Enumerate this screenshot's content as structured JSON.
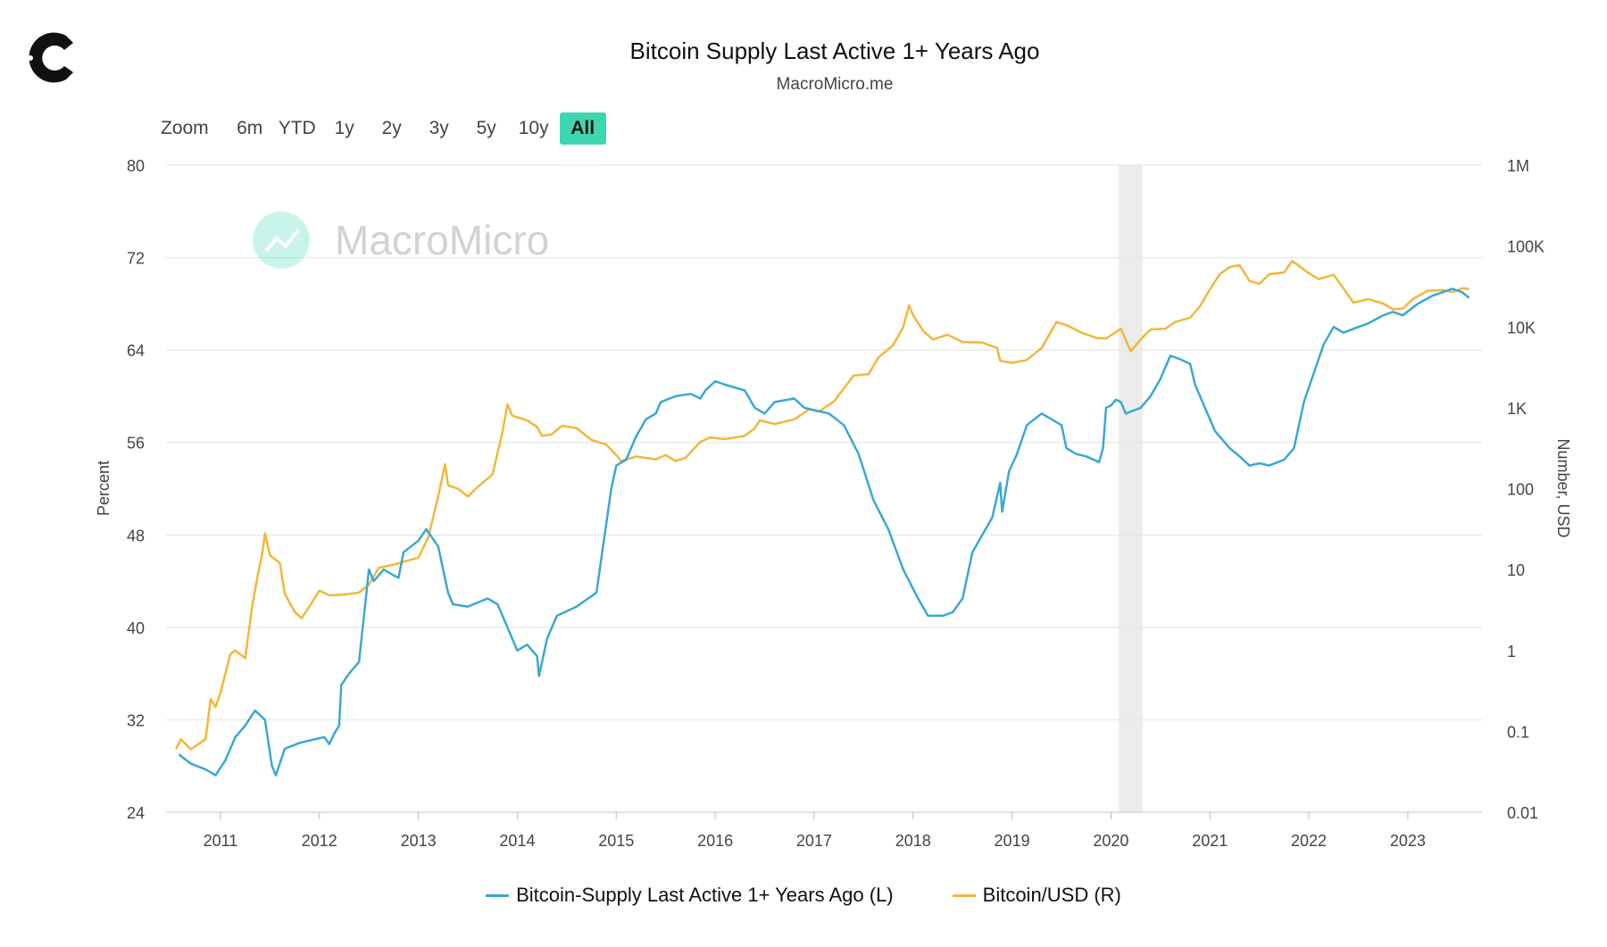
{
  "logo_icon": "c-brand-logo-icon",
  "title": "Bitcoin Supply Last Active 1+ Years Ago",
  "subtitle": "MacroMicro.me",
  "watermark": "MacroMicro",
  "range_selector": {
    "zoom_label": "Zoom",
    "buttons": [
      "6m",
      "YTD",
      "1y",
      "2y",
      "3y",
      "5y",
      "10y",
      "All"
    ],
    "active": "All"
  },
  "colors": {
    "supply": "#3aa8d2",
    "price": "#f2b73b",
    "grid": "#e6e6e6",
    "shade": "#ececec",
    "accent": "#3ed6b0"
  },
  "chart_data": {
    "type": "line",
    "title": "Bitcoin Supply Last Active 1+ Years Ago",
    "x_range": [
      2010.45,
      2023.75
    ],
    "x_ticks": [
      "2011",
      "2012",
      "2013",
      "2014",
      "2015",
      "2016",
      "2017",
      "2018",
      "2019",
      "2020",
      "2021",
      "2022",
      "2023"
    ],
    "left_axis": {
      "label": "Percent",
      "range": [
        24,
        80
      ],
      "ticks": [
        "24",
        "32",
        "40",
        "48",
        "56",
        "64",
        "72",
        "80"
      ]
    },
    "right_axis": {
      "label": "Number, USD",
      "scale": "log",
      "range": [
        0.01,
        1000000
      ],
      "ticks": [
        "0.01",
        "0.1",
        "1",
        "10",
        "100",
        "1K",
        "10K",
        "100K",
        "1M"
      ]
    },
    "shaded_region": [
      2020.08,
      2020.32
    ],
    "legend": [
      "Bitcoin-Supply Last Active 1+ Years Ago (L)",
      "Bitcoin/USD (R)"
    ],
    "series": [
      {
        "name": "Bitcoin-Supply Last Active 1+ Years Ago (L)",
        "axis": "left",
        "points": [
          [
            2010.58,
            29.0
          ],
          [
            2010.7,
            28.2
          ],
          [
            2010.85,
            27.7
          ],
          [
            2010.95,
            27.2
          ],
          [
            2011.05,
            28.5
          ],
          [
            2011.15,
            30.5
          ],
          [
            2011.25,
            31.5
          ],
          [
            2011.35,
            32.8
          ],
          [
            2011.45,
            32.0
          ],
          [
            2011.52,
            28.0
          ],
          [
            2011.56,
            27.2
          ],
          [
            2011.65,
            29.5
          ],
          [
            2011.8,
            30.0
          ],
          [
            2011.95,
            30.3
          ],
          [
            2012.05,
            30.5
          ],
          [
            2012.1,
            29.9
          ],
          [
            2012.15,
            30.8
          ],
          [
            2012.2,
            31.5
          ],
          [
            2012.22,
            35.0
          ],
          [
            2012.3,
            36.0
          ],
          [
            2012.4,
            37.0
          ],
          [
            2012.45,
            41.0
          ],
          [
            2012.5,
            45.0
          ],
          [
            2012.55,
            44.0
          ],
          [
            2012.65,
            45.0
          ],
          [
            2012.75,
            44.5
          ],
          [
            2012.8,
            44.3
          ],
          [
            2012.85,
            46.5
          ],
          [
            2013.0,
            47.5
          ],
          [
            2013.08,
            48.5
          ],
          [
            2013.2,
            47.0
          ],
          [
            2013.3,
            43.0
          ],
          [
            2013.35,
            42.0
          ],
          [
            2013.5,
            41.8
          ],
          [
            2013.7,
            42.5
          ],
          [
            2013.8,
            42.0
          ],
          [
            2013.9,
            40.0
          ],
          [
            2014.0,
            38.0
          ],
          [
            2014.1,
            38.5
          ],
          [
            2014.2,
            37.5
          ],
          [
            2014.22,
            35.8
          ],
          [
            2014.3,
            39.0
          ],
          [
            2014.4,
            41.0
          ],
          [
            2014.6,
            41.8
          ],
          [
            2014.8,
            43.0
          ],
          [
            2014.85,
            46.0
          ],
          [
            2014.95,
            52.0
          ],
          [
            2015.0,
            54.0
          ],
          [
            2015.1,
            54.5
          ],
          [
            2015.2,
            56.5
          ],
          [
            2015.3,
            58.0
          ],
          [
            2015.4,
            58.5
          ],
          [
            2015.45,
            59.5
          ],
          [
            2015.6,
            60.0
          ],
          [
            2015.75,
            60.2
          ],
          [
            2015.85,
            59.8
          ],
          [
            2015.9,
            60.5
          ],
          [
            2016.0,
            61.3
          ],
          [
            2016.1,
            61.0
          ],
          [
            2016.3,
            60.5
          ],
          [
            2016.4,
            59.0
          ],
          [
            2016.5,
            58.5
          ],
          [
            2016.6,
            59.5
          ],
          [
            2016.8,
            59.8
          ],
          [
            2016.9,
            59.0
          ],
          [
            2017.0,
            58.8
          ],
          [
            2017.15,
            58.5
          ],
          [
            2017.3,
            57.5
          ],
          [
            2017.45,
            55.0
          ],
          [
            2017.6,
            51.0
          ],
          [
            2017.75,
            48.5
          ],
          [
            2017.9,
            45.0
          ],
          [
            2018.05,
            42.5
          ],
          [
            2018.15,
            41.0
          ],
          [
            2018.3,
            41.0
          ],
          [
            2018.4,
            41.3
          ],
          [
            2018.5,
            42.5
          ],
          [
            2018.6,
            46.5
          ],
          [
            2018.7,
            48.0
          ],
          [
            2018.8,
            49.5
          ],
          [
            2018.88,
            52.5
          ],
          [
            2018.9,
            50.0
          ],
          [
            2018.97,
            53.5
          ],
          [
            2019.05,
            55.0
          ],
          [
            2019.15,
            57.5
          ],
          [
            2019.3,
            58.5
          ],
          [
            2019.4,
            58.0
          ],
          [
            2019.5,
            57.5
          ],
          [
            2019.55,
            55.5
          ],
          [
            2019.65,
            55.0
          ],
          [
            2019.75,
            54.8
          ],
          [
            2019.88,
            54.3
          ],
          [
            2019.92,
            55.5
          ],
          [
            2019.95,
            59.0
          ],
          [
            2020.0,
            59.2
          ],
          [
            2020.05,
            59.7
          ],
          [
            2020.1,
            59.5
          ],
          [
            2020.15,
            58.5
          ],
          [
            2020.3,
            59.0
          ],
          [
            2020.4,
            60.0
          ],
          [
            2020.5,
            61.5
          ],
          [
            2020.6,
            63.5
          ],
          [
            2020.7,
            63.2
          ],
          [
            2020.8,
            62.8
          ],
          [
            2020.85,
            61.0
          ],
          [
            2020.95,
            59.0
          ],
          [
            2021.05,
            57.0
          ],
          [
            2021.2,
            55.5
          ],
          [
            2021.3,
            54.8
          ],
          [
            2021.4,
            54.0
          ],
          [
            2021.5,
            54.2
          ],
          [
            2021.6,
            54.0
          ],
          [
            2021.75,
            54.5
          ],
          [
            2021.85,
            55.5
          ],
          [
            2021.95,
            59.5
          ],
          [
            2022.05,
            62.0
          ],
          [
            2022.15,
            64.5
          ],
          [
            2022.25,
            66.0
          ],
          [
            2022.35,
            65.5
          ],
          [
            2022.5,
            66.0
          ],
          [
            2022.6,
            66.3
          ],
          [
            2022.75,
            67.0
          ],
          [
            2022.85,
            67.3
          ],
          [
            2022.95,
            67.0
          ],
          [
            2023.1,
            68.0
          ],
          [
            2023.25,
            68.7
          ],
          [
            2023.35,
            69.0
          ],
          [
            2023.45,
            69.3
          ],
          [
            2023.55,
            69.0
          ],
          [
            2023.62,
            68.5
          ]
        ]
      },
      {
        "name": "Bitcoin/USD (R)",
        "axis": "right",
        "points": [
          [
            2010.55,
            0.06
          ],
          [
            2010.6,
            0.08
          ],
          [
            2010.7,
            0.06
          ],
          [
            2010.85,
            0.08
          ],
          [
            2010.9,
            0.25
          ],
          [
            2010.95,
            0.2
          ],
          [
            2011.0,
            0.3
          ],
          [
            2011.1,
            0.9
          ],
          [
            2011.15,
            1.0
          ],
          [
            2011.25,
            0.8
          ],
          [
            2011.32,
            3.5
          ],
          [
            2011.38,
            9.0
          ],
          [
            2011.42,
            15.0
          ],
          [
            2011.45,
            28.0
          ],
          [
            2011.5,
            15.0
          ],
          [
            2011.6,
            12.0
          ],
          [
            2011.65,
            5.0
          ],
          [
            2011.75,
            3.0
          ],
          [
            2011.82,
            2.5
          ],
          [
            2011.9,
            3.5
          ],
          [
            2012.0,
            5.5
          ],
          [
            2012.1,
            4.8
          ],
          [
            2012.25,
            4.9
          ],
          [
            2012.4,
            5.2
          ],
          [
            2012.5,
            6.5
          ],
          [
            2012.6,
            10.5
          ],
          [
            2012.75,
            11.5
          ],
          [
            2012.9,
            13.0
          ],
          [
            2013.0,
            14.0
          ],
          [
            2013.1,
            25.0
          ],
          [
            2013.2,
            80.0
          ],
          [
            2013.27,
            200.0
          ],
          [
            2013.3,
            110.0
          ],
          [
            2013.4,
            100.0
          ],
          [
            2013.5,
            80.0
          ],
          [
            2013.6,
            105.0
          ],
          [
            2013.75,
            150.0
          ],
          [
            2013.85,
            500.0
          ],
          [
            2013.9,
            1100.0
          ],
          [
            2013.95,
            800.0
          ],
          [
            2014.1,
            700.0
          ],
          [
            2014.2,
            580.0
          ],
          [
            2014.25,
            450.0
          ],
          [
            2014.35,
            470.0
          ],
          [
            2014.45,
            600.0
          ],
          [
            2014.6,
            560.0
          ],
          [
            2014.75,
            400.0
          ],
          [
            2014.9,
            350.0
          ],
          [
            2015.0,
            260.0
          ],
          [
            2015.05,
            220.0
          ],
          [
            2015.2,
            250.0
          ],
          [
            2015.4,
            230.0
          ],
          [
            2015.5,
            260.0
          ],
          [
            2015.6,
            220.0
          ],
          [
            2015.7,
            240.0
          ],
          [
            2015.85,
            380.0
          ],
          [
            2015.95,
            430.0
          ],
          [
            2016.1,
            410.0
          ],
          [
            2016.3,
            450.0
          ],
          [
            2016.4,
            560.0
          ],
          [
            2016.45,
            700.0
          ],
          [
            2016.6,
            630.0
          ],
          [
            2016.8,
            720.0
          ],
          [
            2016.95,
            960.0
          ],
          [
            2017.05,
            900.0
          ],
          [
            2017.2,
            1200.0
          ],
          [
            2017.4,
            2500.0
          ],
          [
            2017.55,
            2600.0
          ],
          [
            2017.65,
            4200.0
          ],
          [
            2017.8,
            6000.0
          ],
          [
            2017.9,
            10000.0
          ],
          [
            2017.96,
            18500.0
          ],
          [
            2018.0,
            14000.0
          ],
          [
            2018.1,
            9000.0
          ],
          [
            2018.2,
            7000.0
          ],
          [
            2018.35,
            8000.0
          ],
          [
            2018.5,
            6500.0
          ],
          [
            2018.7,
            6400.0
          ],
          [
            2018.85,
            5500.0
          ],
          [
            2018.88,
            3800.0
          ],
          [
            2019.0,
            3600.0
          ],
          [
            2019.15,
            3900.0
          ],
          [
            2019.3,
            5500.0
          ],
          [
            2019.45,
            11500.0
          ],
          [
            2019.55,
            10500.0
          ],
          [
            2019.7,
            8500.0
          ],
          [
            2019.85,
            7300.0
          ],
          [
            2019.95,
            7200.0
          ],
          [
            2020.1,
            9500.0
          ],
          [
            2020.2,
            5000.0
          ],
          [
            2020.3,
            7000.0
          ],
          [
            2020.4,
            9300.0
          ],
          [
            2020.55,
            9500.0
          ],
          [
            2020.65,
            11500.0
          ],
          [
            2020.8,
            13000.0
          ],
          [
            2020.9,
            18000.0
          ],
          [
            2021.0,
            29000.0
          ],
          [
            2021.1,
            45000.0
          ],
          [
            2021.2,
            55000.0
          ],
          [
            2021.3,
            58000.0
          ],
          [
            2021.4,
            37000.0
          ],
          [
            2021.5,
            34000.0
          ],
          [
            2021.6,
            45000.0
          ],
          [
            2021.75,
            47000.0
          ],
          [
            2021.83,
            65000.0
          ],
          [
            2021.9,
            57000.0
          ],
          [
            2022.0,
            46000.0
          ],
          [
            2022.1,
            39000.0
          ],
          [
            2022.25,
            44000.0
          ],
          [
            2022.35,
            30000.0
          ],
          [
            2022.45,
            20000.0
          ],
          [
            2022.6,
            22000.0
          ],
          [
            2022.75,
            19500.0
          ],
          [
            2022.85,
            16500.0
          ],
          [
            2022.95,
            16800.0
          ],
          [
            2023.05,
            22000.0
          ],
          [
            2023.2,
            28000.0
          ],
          [
            2023.35,
            28500.0
          ],
          [
            2023.45,
            27000.0
          ],
          [
            2023.55,
            30000.0
          ],
          [
            2023.62,
            29500.0
          ]
        ]
      }
    ]
  }
}
